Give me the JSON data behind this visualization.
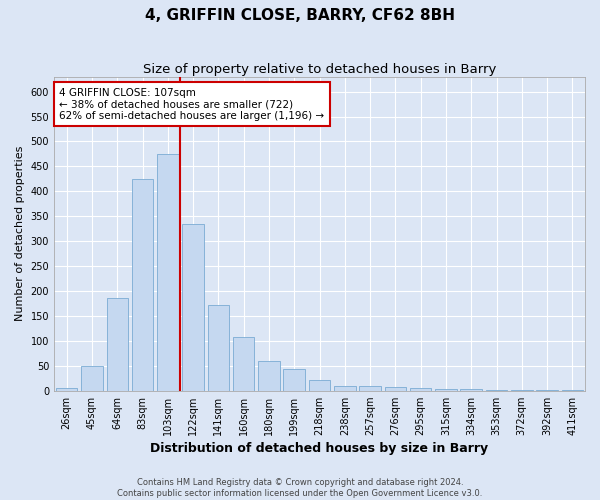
{
  "title": "4, GRIFFIN CLOSE, BARRY, CF62 8BH",
  "subtitle": "Size of property relative to detached houses in Barry",
  "xlabel": "Distribution of detached houses by size in Barry",
  "ylabel": "Number of detached properties",
  "categories": [
    "26sqm",
    "45sqm",
    "64sqm",
    "83sqm",
    "103sqm",
    "122sqm",
    "141sqm",
    "160sqm",
    "180sqm",
    "199sqm",
    "218sqm",
    "238sqm",
    "257sqm",
    "276sqm",
    "295sqm",
    "315sqm",
    "334sqm",
    "353sqm",
    "372sqm",
    "392sqm",
    "411sqm"
  ],
  "values": [
    5,
    50,
    185,
    425,
    475,
    335,
    172,
    108,
    60,
    43,
    22,
    10,
    10,
    8,
    6,
    4,
    3,
    2,
    2,
    2,
    2
  ],
  "bar_color": "#c5d8f0",
  "bar_edge_color": "#7aabd4",
  "vline_x_index": 4,
  "vline_color": "#cc0000",
  "annotation_title": "4 GRIFFIN CLOSE: 107sqm",
  "annotation_line1": "← 38% of detached houses are smaller (722)",
  "annotation_line2": "62% of semi-detached houses are larger (1,196) →",
  "annotation_box_color": "#ffffff",
  "annotation_box_edge": "#cc0000",
  "ylim": [
    0,
    630
  ],
  "yticks": [
    0,
    50,
    100,
    150,
    200,
    250,
    300,
    350,
    400,
    450,
    500,
    550,
    600
  ],
  "bg_color": "#dce6f5",
  "plot_bg_color": "#dce6f5",
  "grid_color": "#ffffff",
  "footer_line1": "Contains HM Land Registry data © Crown copyright and database right 2024.",
  "footer_line2": "Contains public sector information licensed under the Open Government Licence v3.0.",
  "title_fontsize": 11,
  "subtitle_fontsize": 9.5,
  "xlabel_fontsize": 9,
  "ylabel_fontsize": 8,
  "tick_fontsize": 7,
  "annot_fontsize": 7.5
}
